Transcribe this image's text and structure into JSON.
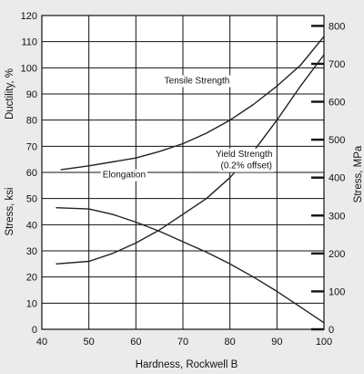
{
  "chart_data": {
    "type": "line",
    "title": "",
    "xlabel": "Hardness, Rockwell B",
    "ylabel_left": "Stress, ksi",
    "ylabel_left_inner": "Ductility, %",
    "ylabel_right": "Stress, MPa",
    "xlim": [
      40,
      100
    ],
    "ylim_left": [
      0,
      120
    ],
    "ylim_right": [
      0,
      827.4
    ],
    "x_ticks": [
      40,
      50,
      60,
      70,
      80,
      90,
      100
    ],
    "y_left_ticks": [
      0,
      10,
      20,
      30,
      40,
      50,
      60,
      70,
      80,
      90,
      100,
      110,
      120
    ],
    "y_right_ticks": [
      0,
      100,
      200,
      300,
      400,
      500,
      600,
      700,
      800
    ],
    "grid": true,
    "legend": "none",
    "series": [
      {
        "name": "Tensile Strength",
        "x": [
          44,
          50,
          55,
          60,
          65,
          70,
          75,
          80,
          85,
          90,
          95,
          100
        ],
        "y": [
          61,
          62.5,
          64,
          65.5,
          68,
          71,
          75,
          80,
          86,
          93,
          101,
          112
        ]
      },
      {
        "name": "Yield Strength",
        "x": [
          43,
          50,
          55,
          60,
          65,
          70,
          75,
          80,
          85,
          90,
          95,
          100
        ],
        "y": [
          25,
          26,
          29,
          33,
          38,
          44,
          50,
          58,
          68,
          80,
          93,
          105
        ]
      },
      {
        "name": "Elongation",
        "x": [
          43,
          50,
          55,
          60,
          65,
          70,
          75,
          80,
          85,
          90,
          95,
          100
        ],
        "y": [
          46.5,
          46,
          44,
          41,
          37.5,
          33.5,
          29.5,
          25,
          20,
          14.5,
          8.5,
          2.5
        ]
      }
    ],
    "annotations": [
      {
        "text": "Tensile Strength",
        "x": 73,
        "y": 94
      },
      {
        "text": "Yield Strength",
        "x": 83,
        "y": 66
      },
      {
        "text": "(0.2% offset)",
        "x": 83.5,
        "y": 61.5
      },
      {
        "text": "Elongation",
        "x": 57.5,
        "y": 58
      }
    ]
  }
}
